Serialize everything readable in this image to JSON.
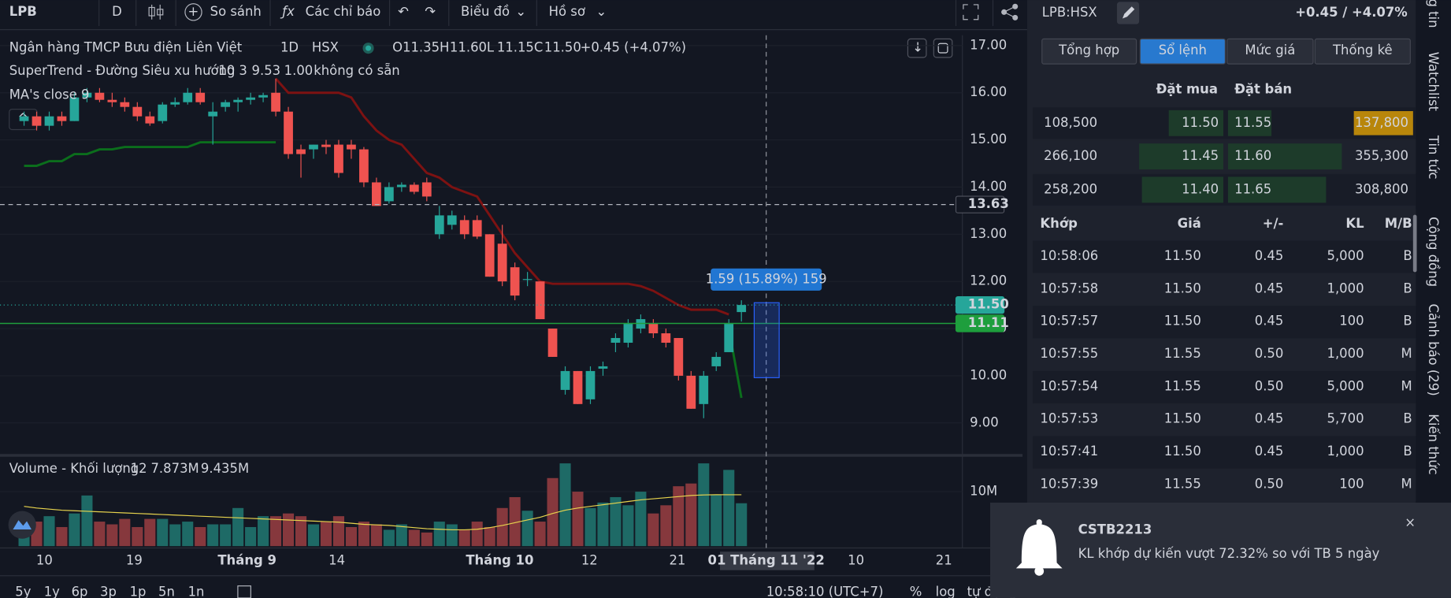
{
  "toolbar": {
    "symbol": "LPB",
    "interval": "D",
    "compare": "So sánh",
    "indicators": "Các chỉ báo",
    "chart_type": "Biểu đồ",
    "profile": "Hồ sơ"
  },
  "chart_data": {
    "type": "candlestick",
    "title": "Ngân hàng TMCP Bưu điện Liên Việt",
    "interval": "1D",
    "exchange": "HSX",
    "legend": [
      {
        "label": "O",
        "value": "11.35"
      },
      {
        "label": "H",
        "value": "11.60"
      },
      {
        "label": "L",
        "value": "11.15"
      },
      {
        "label": "C",
        "value": "11.50"
      }
    ],
    "change": "+0.45 (+4.07%)",
    "supertrend_legend": {
      "name": "SuperTrend - Đường Siêu xu hướng",
      "params": "10 3",
      "value": "9.53",
      "factor": "1.00",
      "status": "không có sẵn"
    },
    "ma_legend": "MA's close 9",
    "volume_legend": {
      "name": "Volume - Khối lượng",
      "params": "12",
      "value": "7.873M",
      "ma": "9.435M"
    },
    "ylim": [
      8.35,
      17.22
    ],
    "yticks": [
      {
        "value": 17,
        "label": "17.00"
      },
      {
        "value": 16,
        "label": "16.00"
      },
      {
        "value": 15,
        "label": "15.00"
      },
      {
        "value": 14,
        "label": "14.00"
      },
      {
        "value": 13,
        "label": "13.00"
      },
      {
        "value": 12,
        "label": "12.00"
      },
      {
        "value": 11,
        "label": "11.00"
      },
      {
        "value": 10,
        "label": "10.00"
      },
      {
        "value": 9,
        "label": "9.00"
      }
    ],
    "up_color": "#26a69a",
    "down_color": "#ef5350",
    "candles": [
      [
        15.4,
        15.6,
        15.3,
        15.5
      ],
      [
        15.5,
        15.6,
        15.2,
        15.3
      ],
      [
        15.3,
        15.6,
        15.2,
        15.5
      ],
      [
        15.5,
        15.6,
        15.3,
        15.4
      ],
      [
        15.4,
        16.0,
        15.4,
        15.9
      ],
      [
        15.9,
        16.1,
        15.8,
        16.0
      ],
      [
        16.0,
        16.1,
        15.8,
        15.85
      ],
      [
        15.85,
        16.0,
        15.7,
        15.8
      ],
      [
        15.8,
        15.9,
        15.6,
        15.7
      ],
      [
        15.7,
        15.8,
        15.4,
        15.5
      ],
      [
        15.5,
        15.6,
        15.3,
        15.35
      ],
      [
        15.4,
        15.8,
        15.35,
        15.75
      ],
      [
        15.75,
        15.9,
        15.7,
        15.8
      ],
      [
        15.8,
        16.1,
        15.75,
        16.0
      ],
      [
        16.0,
        16.1,
        15.75,
        15.8
      ],
      [
        15.5,
        15.8,
        14.9,
        15.6
      ],
      [
        15.7,
        15.85,
        15.6,
        15.8
      ],
      [
        15.8,
        15.9,
        15.6,
        15.85
      ],
      [
        15.85,
        16.0,
        15.75,
        15.9
      ],
      [
        15.9,
        16.0,
        15.8,
        15.95
      ],
      [
        16.0,
        16.3,
        15.5,
        15.6
      ],
      [
        15.6,
        15.7,
        14.6,
        14.7
      ],
      [
        14.8,
        14.9,
        14.2,
        14.7
      ],
      [
        14.8,
        14.9,
        14.6,
        14.9
      ],
      [
        14.9,
        15.0,
        14.7,
        14.85
      ],
      [
        14.9,
        15.0,
        14.2,
        14.3
      ],
      [
        14.9,
        15.0,
        14.6,
        14.8
      ],
      [
        14.8,
        14.85,
        14.0,
        14.1
      ],
      [
        14.1,
        14.2,
        13.6,
        13.6
      ],
      [
        13.7,
        14.1,
        13.65,
        14.0
      ],
      [
        14.0,
        14.1,
        13.9,
        14.05
      ],
      [
        14.05,
        14.1,
        13.85,
        13.9
      ],
      [
        14.1,
        14.2,
        13.7,
        13.8
      ],
      [
        13.0,
        13.6,
        12.9,
        13.4
      ],
      [
        13.2,
        13.5,
        13.1,
        13.4
      ],
      [
        13.3,
        13.4,
        12.9,
        13.0
      ],
      [
        13.3,
        13.4,
        12.9,
        12.95
      ],
      [
        13.0,
        13.0,
        12.1,
        12.1
      ],
      [
        12.8,
        13.2,
        11.9,
        12.0
      ],
      [
        12.3,
        12.4,
        11.6,
        11.7
      ],
      [
        12.05,
        12.2,
        11.9,
        12.05
      ],
      [
        12.0,
        12.0,
        11.2,
        11.2
      ],
      [
        11.0,
        11.0,
        10.4,
        10.4
      ],
      [
        9.7,
        10.2,
        9.6,
        10.1
      ],
      [
        10.1,
        10.1,
        9.4,
        9.4
      ],
      [
        9.5,
        10.2,
        9.4,
        10.1
      ],
      [
        10.15,
        10.3,
        10.0,
        10.2
      ],
      [
        10.7,
        10.9,
        10.5,
        10.8
      ],
      [
        10.7,
        11.2,
        10.6,
        11.1
      ],
      [
        11.0,
        11.3,
        10.9,
        11.2
      ],
      [
        11.1,
        11.2,
        10.8,
        10.9
      ],
      [
        10.9,
        11.0,
        10.6,
        10.7
      ],
      [
        10.8,
        10.8,
        9.9,
        10.0
      ],
      [
        10.0,
        10.1,
        9.3,
        9.3
      ],
      [
        9.4,
        10.1,
        9.1,
        10.0
      ],
      [
        10.2,
        10.5,
        10.1,
        10.4
      ],
      [
        10.5,
        11.2,
        10.5,
        11.1
      ],
      [
        11.35,
        11.6,
        11.15,
        11.5
      ]
    ],
    "supertrend_up": {
      "color": "#0b6e1c",
      "values": [
        14.45,
        14.45,
        14.55,
        14.55,
        14.7,
        14.7,
        14.8,
        14.8,
        14.85,
        14.85,
        14.85,
        14.85,
        14.85,
        14.85,
        14.95,
        14.95,
        14.95,
        14.95,
        14.95,
        14.95,
        14.95,
        null,
        null,
        null,
        null,
        null,
        null,
        null,
        null,
        null,
        null,
        null,
        null,
        null,
        null,
        null,
        null,
        null,
        null,
        null,
        null,
        null,
        null,
        null,
        null,
        null,
        null,
        null,
        null,
        null,
        null,
        null,
        null,
        null,
        null,
        null,
        11.0,
        9.53
      ]
    },
    "supertrend_down": {
      "color": "#7d1212",
      "values": [
        null,
        null,
        null,
        null,
        null,
        null,
        null,
        null,
        null,
        null,
        null,
        null,
        null,
        null,
        null,
        null,
        null,
        null,
        null,
        null,
        16.3,
        16.0,
        16.0,
        16.0,
        16.0,
        16.0,
        15.9,
        15.5,
        15.2,
        15.0,
        14.9,
        14.6,
        14.3,
        14.2,
        14.0,
        13.9,
        13.8,
        13.4,
        13.0,
        12.6,
        12.3,
        12.0,
        11.95,
        11.95,
        11.95,
        11.95,
        11.95,
        11.95,
        11.95,
        11.9,
        11.8,
        11.65,
        11.5,
        11.4,
        11.4,
        11.4,
        11.3,
        null
      ]
    },
    "price_lines": [
      {
        "value": 13.63,
        "label": "13.63",
        "style": "dashed",
        "color": "#131722"
      },
      {
        "value": 11.5,
        "label": "11.50",
        "style": "dotted",
        "color": "#26a69a"
      },
      {
        "value": 11.11,
        "label": "11.11",
        "style": "solid",
        "color": "#1e9e3d"
      }
    ],
    "measure": "1.59 (15.89%) 159",
    "volumes": [
      5.5,
      4.5,
      5.5,
      3.5,
      6,
      9.3,
      4.5,
      4,
      5,
      3.5,
      5,
      5,
      4,
      4.5,
      3.5,
      4,
      4,
      7,
      3.5,
      5.5,
      5.5,
      6,
      5.5,
      4,
      4.5,
      5.5,
      3.5,
      4.5,
      4,
      3,
      4,
      3,
      2.5,
      4.5,
      4,
      3,
      4.5,
      3.5,
      7,
      9,
      6.5,
      4.5,
      12.5,
      15.2,
      10,
      7,
      8,
      9,
      7.5,
      10,
      6,
      7.5,
      11,
      11.5,
      15.2,
      9.5,
      14,
      7.873
    ],
    "volume_ma": {
      "color": "#e8d44d",
      "values": [
        7.3,
        7.0,
        6.8,
        6.6,
        6.5,
        6.4,
        6.3,
        6.2,
        6.1,
        6.0,
        5.9,
        5.8,
        5.7,
        5.6,
        5.5,
        5.4,
        5.3,
        5.2,
        5.1,
        5.0,
        4.9,
        4.8,
        4.7,
        4.6,
        4.5,
        4.4,
        4.2,
        4.0,
        3.9,
        3.8,
        3.6,
        3.4,
        3.2,
        3.1,
        3.0,
        3.0,
        3.1,
        3.4,
        3.8,
        4.3,
        4.8,
        5.3,
        6.0,
        6.6,
        7.0,
        7.3,
        7.6,
        7.9,
        8.2,
        8.5,
        8.7,
        8.9,
        9.1,
        9.3,
        9.4,
        9.45,
        9.44,
        9.435
      ]
    },
    "vol_ylim": [
      0,
      15.3
    ],
    "vol_yticks": [
      {
        "value": 10,
        "label": "10M"
      }
    ],
    "xlabels": [
      "10",
      "19",
      "Tháng 9",
      "14",
      "Tháng 10",
      "12",
      "21",
      "10",
      "21"
    ],
    "crosshair_label": "01 Tháng 11 '22"
  },
  "bottom_bar": {
    "ranges": [
      "5y",
      "1y",
      "6p",
      "3p",
      "1p",
      "5n",
      "1n"
    ],
    "time": "10:58:10 (UTC+7)",
    "percent": "%",
    "log": "log",
    "auto": "tự động"
  },
  "panel": {
    "symbol": "LPB:HSX",
    "change": "+0.45 / +4.07%",
    "tabs": [
      "Tổng hợp",
      "Sổ lệnh",
      "Mức giá",
      "Thống kê"
    ],
    "book_header": [
      "Đặt mua",
      "Đặt bán"
    ],
    "book": [
      [
        "108,500",
        "11.50",
        "11.55",
        "137,800"
      ],
      [
        "266,100",
        "11.45",
        "11.60",
        "355,300"
      ],
      [
        "258,200",
        "11.40",
        "11.65",
        "308,800"
      ]
    ],
    "trades_header": [
      "Khớp",
      "Giá",
      "+/-",
      "KL",
      "M/B"
    ],
    "trades": [
      [
        "10:58:06",
        "11.50",
        "0.45",
        "5,000",
        "B"
      ],
      [
        "10:57:58",
        "11.50",
        "0.45",
        "1,000",
        "B"
      ],
      [
        "10:57:57",
        "11.50",
        "0.45",
        "100",
        "B"
      ],
      [
        "10:57:55",
        "11.55",
        "0.50",
        "1,000",
        "M"
      ],
      [
        "10:57:54",
        "11.55",
        "0.50",
        "5,000",
        "M"
      ],
      [
        "10:57:53",
        "11.50",
        "0.45",
        "5,700",
        "B"
      ],
      [
        "10:57:41",
        "11.50",
        "0.45",
        "1,000",
        "B"
      ],
      [
        "10:57:39",
        "11.55",
        "0.50",
        "100",
        "M"
      ]
    ]
  },
  "side_tabs": [
    "ng tin",
    "Watchlist",
    "Tin tức",
    "Cộng đồng",
    "Cảnh báo (29)",
    "Kiến thức"
  ],
  "notification": {
    "title": "CSTB2213",
    "message": "KL khớp dự kiến vượt 72.32% so với TB 5 ngày"
  }
}
